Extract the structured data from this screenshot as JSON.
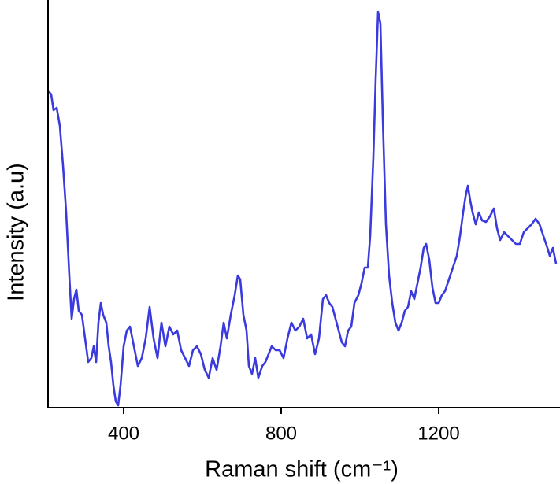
{
  "chart_data": {
    "type": "line",
    "x_label": "Raman shift (cm⁻¹)",
    "y_label": "Intensity (a.u)",
    "color": "#3a3adf",
    "xlim": [
      208,
      1498
    ],
    "xticks": [
      400,
      800,
      1200
    ],
    "ylim": [
      0,
      508
    ],
    "x": [
      208,
      216,
      222,
      230,
      238,
      246,
      254,
      262,
      268,
      274,
      280,
      286,
      294,
      302,
      310,
      318,
      324,
      330,
      336,
      342,
      348,
      356,
      362,
      368,
      374,
      380,
      386,
      392,
      400,
      408,
      416,
      426,
      436,
      446,
      456,
      466,
      476,
      486,
      496,
      506,
      516,
      526,
      536,
      546,
      556,
      566,
      576,
      586,
      596,
      606,
      616,
      626,
      636,
      646,
      654,
      662,
      672,
      682,
      690,
      696,
      704,
      712,
      718,
      726,
      734,
      742,
      752,
      760,
      768,
      776,
      786,
      796,
      806,
      816,
      826,
      836,
      846,
      856,
      866,
      876,
      886,
      896,
      906,
      914,
      922,
      930,
      938,
      946,
      954,
      962,
      970,
      978,
      986,
      996,
      1004,
      1012,
      1020,
      1026,
      1034,
      1040,
      1046,
      1052,
      1058,
      1066,
      1074,
      1082,
      1090,
      1098,
      1106,
      1114,
      1122,
      1130,
      1138,
      1146,
      1154,
      1162,
      1168,
      1176,
      1184,
      1192,
      1200,
      1208,
      1216,
      1226,
      1236,
      1246,
      1254,
      1262,
      1268,
      1274,
      1280,
      1286,
      1294,
      1302,
      1310,
      1320,
      1330,
      1340,
      1348,
      1356,
      1366,
      1376,
      1386,
      1396,
      1406,
      1416,
      1426,
      1436,
      1446,
      1456,
      1466,
      1476,
      1482,
      1490,
      1498
    ],
    "values": [
      403,
      398,
      378,
      381,
      358,
      308,
      248,
      168,
      113,
      138,
      150,
      123,
      118,
      88,
      58,
      63,
      78,
      58,
      108,
      133,
      118,
      108,
      78,
      58,
      28,
      8,
      3,
      28,
      78,
      98,
      103,
      78,
      53,
      63,
      88,
      128,
      88,
      63,
      108,
      78,
      103,
      93,
      98,
      73,
      63,
      53,
      73,
      78,
      68,
      48,
      38,
      63,
      48,
      78,
      108,
      88,
      118,
      143,
      168,
      163,
      118,
      98,
      53,
      43,
      63,
      38,
      53,
      58,
      68,
      78,
      73,
      73,
      63,
      88,
      108,
      98,
      103,
      113,
      88,
      93,
      68,
      88,
      138,
      143,
      133,
      128,
      113,
      98,
      83,
      78,
      98,
      103,
      133,
      143,
      158,
      178,
      178,
      218,
      318,
      418,
      503,
      488,
      368,
      233,
      168,
      133,
      108,
      98,
      108,
      123,
      128,
      148,
      138,
      158,
      178,
      203,
      208,
      188,
      153,
      133,
      133,
      143,
      148,
      163,
      178,
      193,
      218,
      248,
      268,
      282,
      263,
      248,
      233,
      248,
      238,
      236,
      243,
      253,
      228,
      213,
      223,
      218,
      213,
      208,
      208,
      223,
      228,
      233,
      240,
      233,
      218,
      203,
      193,
      203,
      183
    ]
  }
}
